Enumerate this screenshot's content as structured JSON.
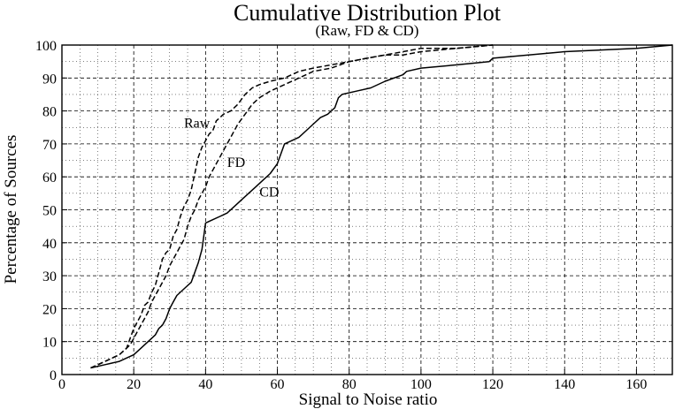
{
  "chart_data": {
    "type": "line",
    "title": "Cumulative Distribution Plot",
    "subtitle": "(Raw, FD & CD)",
    "xlabel": "Signal to Noise ratio",
    "ylabel": "Percentage of Sources",
    "xlim": [
      0,
      170
    ],
    "ylim": [
      0,
      100
    ],
    "xticks": [
      0,
      20,
      40,
      60,
      80,
      100,
      120,
      140,
      160
    ],
    "yticks": [
      0,
      10,
      20,
      30,
      40,
      50,
      60,
      70,
      80,
      90,
      100
    ],
    "grid": true,
    "series": [
      {
        "name": "Raw",
        "style": "dashed",
        "x": [
          8,
          12,
          16,
          18,
          19,
          20,
          22,
          23,
          24,
          25,
          26,
          27,
          28,
          29,
          30,
          31,
          32,
          33,
          34,
          35,
          36,
          37,
          38,
          39,
          40,
          41,
          42,
          43,
          44,
          45,
          47,
          49,
          51,
          53,
          55,
          58,
          62,
          66,
          70,
          75,
          80,
          85,
          90,
          95,
          100,
          110,
          120
        ],
        "y": [
          2,
          4,
          6,
          8,
          11,
          14,
          18,
          21,
          22,
          25,
          27,
          31,
          35,
          37,
          38,
          42,
          44,
          48,
          51,
          53,
          56,
          61,
          66,
          69,
          71,
          73,
          74,
          77,
          78,
          79,
          80,
          82,
          85,
          87,
          88,
          89,
          90,
          92,
          93,
          94,
          95,
          96,
          97,
          98,
          99,
          99,
          100
        ]
      },
      {
        "name": "FD",
        "style": "dashed",
        "x": [
          8,
          12,
          16,
          19,
          20,
          21,
          22,
          23,
          24,
          25,
          26,
          27,
          28,
          29,
          30,
          31,
          32,
          33,
          34,
          35,
          36,
          37,
          38,
          39,
          40,
          41,
          42,
          43,
          44,
          45,
          47,
          49,
          51,
          53,
          55,
          58,
          62,
          66,
          70,
          75,
          80,
          85,
          90,
          95,
          100,
          110,
          120
        ],
        "y": [
          2,
          4,
          6,
          9,
          11,
          13,
          15,
          17,
          19,
          22,
          24,
          26,
          28,
          30,
          33,
          35,
          37,
          39,
          41,
          45,
          48,
          50,
          53,
          55,
          57,
          60,
          62,
          64,
          66,
          68,
          72,
          76,
          79,
          82,
          84,
          86,
          88,
          90,
          92,
          93,
          95,
          96,
          97,
          97,
          98,
          99,
          100
        ]
      },
      {
        "name": "CD",
        "style": "solid",
        "x": [
          8,
          12,
          16,
          20,
          22,
          24,
          26,
          27,
          28,
          29,
          30,
          31,
          32,
          34,
          36,
          37,
          38,
          39,
          40,
          42,
          44,
          46,
          48,
          50,
          52,
          54,
          56,
          58,
          60,
          62,
          64,
          66,
          68,
          70,
          72,
          74,
          76,
          77,
          78,
          82,
          86,
          90,
          95,
          96,
          100,
          110,
          119,
          120,
          140,
          160,
          170
        ],
        "y": [
          2,
          3,
          4,
          6,
          8,
          10,
          12,
          14,
          15,
          17,
          20,
          22,
          24,
          26,
          28,
          31,
          34,
          38,
          46,
          47,
          48,
          49,
          51,
          53,
          55,
          57,
          59,
          61,
          64,
          70,
          71,
          72,
          74,
          76,
          78,
          79,
          81,
          84,
          85,
          86,
          87,
          89,
          91,
          92,
          93,
          94,
          95,
          96,
          98,
          99,
          100
        ]
      }
    ],
    "annotations": [
      {
        "text": "Raw",
        "x": 34,
        "y": 75
      },
      {
        "text": "FD",
        "x": 46,
        "y": 63
      },
      {
        "text": "CD",
        "x": 55,
        "y": 54
      }
    ]
  }
}
